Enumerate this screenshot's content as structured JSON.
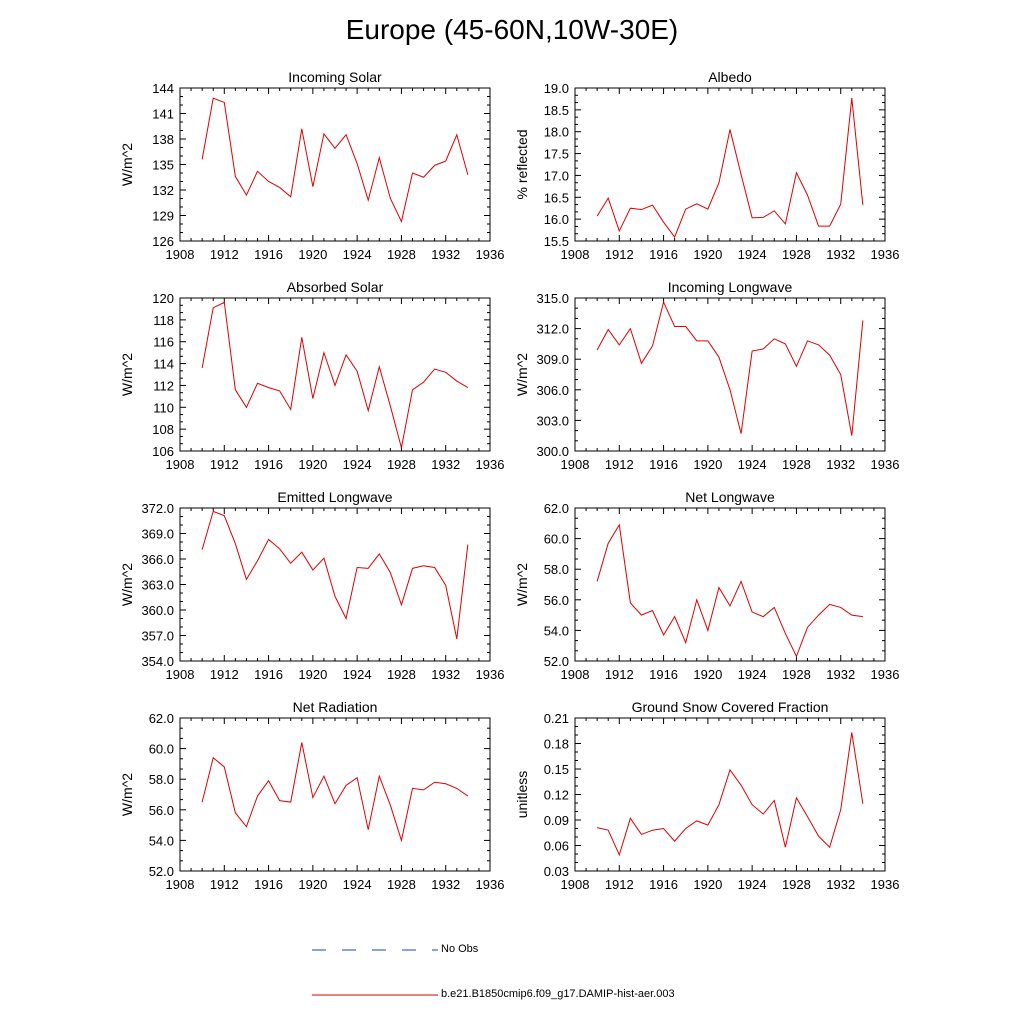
{
  "title": "Europe (45-60N,10W-30E)",
  "legend": {
    "entries": [
      {
        "label": "No Obs",
        "color": "#1f3fbf",
        "style": "dashed"
      },
      {
        "label": "b.e21.B1850cmip6.f09_g17.DAMIP-hist-aer.003",
        "color": "#e00000",
        "style": "solid"
      }
    ]
  },
  "chart_data": [
    {
      "type": "line",
      "title": "Incoming Solar",
      "ylabel": "W/m^2",
      "xlim": [
        1908,
        1936
      ],
      "ylim": [
        126,
        144
      ],
      "x_ticks": [
        "1908",
        "1912",
        "1916",
        "1920",
        "1924",
        "1928",
        "1932",
        "1936"
      ],
      "y_ticks": [
        "126",
        "129",
        "132",
        "135",
        "138",
        "141",
        "144"
      ],
      "y_tick_values": [
        126,
        129,
        132,
        135,
        138,
        141,
        144
      ],
      "series": [
        {
          "color": "#e00000",
          "x": [
            1910,
            1911,
            1912,
            1913,
            1914,
            1915,
            1916,
            1917,
            1918,
            1919,
            1920,
            1921,
            1922,
            1923,
            1924,
            1925,
            1926,
            1927,
            1928,
            1929,
            1930,
            1931,
            1932,
            1933,
            1934
          ],
          "values": [
            135.6,
            142.8,
            142.3,
            133.6,
            131.4,
            134.2,
            133.0,
            132.3,
            131.2,
            139.2,
            132.4,
            138.6,
            136.9,
            138.5,
            135.1,
            130.8,
            135.8,
            131.0,
            128.3,
            134.0,
            133.5,
            134.9,
            135.4,
            138.5,
            133.8
          ]
        }
      ]
    },
    {
      "type": "line",
      "title": "Albedo",
      "ylabel": "% reflected",
      "xlim": [
        1908,
        1936
      ],
      "ylim": [
        15.5,
        19.0
      ],
      "x_ticks": [
        "1908",
        "1912",
        "1916",
        "1920",
        "1924",
        "1928",
        "1932",
        "1936"
      ],
      "y_ticks": [
        "15.5",
        "16.0",
        "16.5",
        "17.0",
        "17.5",
        "18.0",
        "18.5",
        "19.0"
      ],
      "y_tick_values": [
        15.5,
        16.0,
        16.5,
        17.0,
        17.5,
        18.0,
        18.5,
        19.0
      ],
      "series": [
        {
          "color": "#e00000",
          "x": [
            1910,
            1911,
            1912,
            1913,
            1914,
            1915,
            1916,
            1917,
            1918,
            1919,
            1920,
            1921,
            1922,
            1923,
            1924,
            1925,
            1926,
            1927,
            1928,
            1929,
            1930,
            1931,
            1932,
            1933,
            1934
          ],
          "values": [
            16.07,
            16.48,
            15.73,
            16.25,
            16.22,
            16.32,
            15.93,
            15.59,
            16.23,
            16.35,
            16.23,
            16.83,
            18.05,
            17.02,
            16.03,
            16.04,
            16.19,
            15.89,
            17.06,
            16.55,
            15.84,
            15.84,
            16.34,
            18.77,
            16.32
          ]
        }
      ]
    },
    {
      "type": "line",
      "title": "Absorbed Solar",
      "ylabel": "W/m^2",
      "xlim": [
        1908,
        1936
      ],
      "ylim": [
        106,
        120
      ],
      "x_ticks": [
        "1908",
        "1912",
        "1916",
        "1920",
        "1924",
        "1928",
        "1932",
        "1936"
      ],
      "y_ticks": [
        "106",
        "108",
        "110",
        "112",
        "114",
        "116",
        "118",
        "120"
      ],
      "y_tick_values": [
        106,
        108,
        110,
        112,
        114,
        116,
        118,
        120
      ],
      "series": [
        {
          "color": "#e00000",
          "x": [
            1910,
            1911,
            1912,
            1913,
            1914,
            1915,
            1916,
            1917,
            1918,
            1919,
            1920,
            1921,
            1922,
            1923,
            1924,
            1925,
            1926,
            1927,
            1928,
            1929,
            1930,
            1931,
            1932,
            1933,
            1934
          ],
          "values": [
            113.6,
            119.1,
            119.6,
            111.6,
            110.0,
            112.2,
            111.8,
            111.5,
            109.8,
            116.4,
            110.8,
            115.0,
            112.0,
            114.8,
            113.3,
            109.7,
            113.7,
            110.1,
            106.3,
            111.6,
            112.3,
            113.5,
            113.2,
            112.4,
            111.8
          ]
        }
      ]
    },
    {
      "type": "line",
      "title": "Incoming Longwave",
      "ylabel": "W/m^2",
      "xlim": [
        1908,
        1936
      ],
      "ylim": [
        300.0,
        315.0
      ],
      "x_ticks": [
        "1908",
        "1912",
        "1916",
        "1920",
        "1924",
        "1928",
        "1932",
        "1936"
      ],
      "y_ticks": [
        "300.0",
        "303.0",
        "306.0",
        "309.0",
        "312.0",
        "315.0"
      ],
      "y_tick_values": [
        300.0,
        303.0,
        306.0,
        309.0,
        312.0,
        315.0
      ],
      "series": [
        {
          "color": "#e00000",
          "x": [
            1910,
            1911,
            1912,
            1913,
            1914,
            1915,
            1916,
            1917,
            1918,
            1919,
            1920,
            1921,
            1922,
            1923,
            1924,
            1925,
            1926,
            1927,
            1928,
            1929,
            1930,
            1931,
            1932,
            1933,
            1934
          ],
          "values": [
            309.9,
            311.9,
            310.4,
            312.0,
            308.6,
            310.3,
            314.6,
            312.2,
            312.2,
            310.8,
            310.8,
            309.2,
            306.0,
            301.7,
            309.8,
            310.0,
            311.0,
            310.5,
            308.3,
            310.8,
            310.4,
            309.4,
            307.5,
            301.5,
            312.8
          ]
        }
      ]
    },
    {
      "type": "line",
      "title": "Emitted Longwave",
      "ylabel": "W/m^2",
      "xlim": [
        1908,
        1936
      ],
      "ylim": [
        354.0,
        372.0
      ],
      "x_ticks": [
        "1908",
        "1912",
        "1916",
        "1920",
        "1924",
        "1928",
        "1932",
        "1936"
      ],
      "y_ticks": [
        "354.0",
        "357.0",
        "360.0",
        "363.0",
        "366.0",
        "369.0",
        "372.0"
      ],
      "y_tick_values": [
        354.0,
        357.0,
        360.0,
        363.0,
        366.0,
        369.0,
        372.0
      ],
      "series": [
        {
          "color": "#e00000",
          "x": [
            1910,
            1911,
            1912,
            1913,
            1914,
            1915,
            1916,
            1917,
            1918,
            1919,
            1920,
            1921,
            1922,
            1923,
            1924,
            1925,
            1926,
            1927,
            1928,
            1929,
            1930,
            1931,
            1932,
            1933,
            1934
          ],
          "values": [
            367.1,
            371.6,
            371.1,
            367.8,
            363.6,
            365.8,
            368.3,
            367.2,
            365.5,
            366.8,
            364.7,
            366.1,
            361.6,
            359.0,
            365.0,
            364.9,
            366.6,
            364.4,
            360.6,
            364.9,
            365.2,
            365.0,
            362.9,
            356.6,
            367.7
          ]
        }
      ]
    },
    {
      "type": "line",
      "title": "Net Longwave",
      "ylabel": "W/m^2",
      "xlim": [
        1908,
        1936
      ],
      "ylim": [
        52.0,
        62.0
      ],
      "x_ticks": [
        "1908",
        "1912",
        "1916",
        "1920",
        "1924",
        "1928",
        "1932",
        "1936"
      ],
      "y_ticks": [
        "52.0",
        "54.0",
        "56.0",
        "58.0",
        "60.0",
        "62.0"
      ],
      "y_tick_values": [
        52.0,
        54.0,
        56.0,
        58.0,
        60.0,
        62.0
      ],
      "series": [
        {
          "color": "#e00000",
          "x": [
            1910,
            1911,
            1912,
            1913,
            1914,
            1915,
            1916,
            1917,
            1918,
            1919,
            1920,
            1921,
            1922,
            1923,
            1924,
            1925,
            1926,
            1927,
            1928,
            1929,
            1930,
            1931,
            1932,
            1933,
            1934
          ],
          "values": [
            57.2,
            59.7,
            60.9,
            55.8,
            55.0,
            55.3,
            53.7,
            54.9,
            53.2,
            56.0,
            54.0,
            56.8,
            55.6,
            57.2,
            55.2,
            54.9,
            55.5,
            53.8,
            52.3,
            54.2,
            55.0,
            55.7,
            55.5,
            55.0,
            54.9
          ]
        }
      ]
    },
    {
      "type": "line",
      "title": "Net Radiation",
      "ylabel": "W/m^2",
      "xlim": [
        1908,
        1936
      ],
      "ylim": [
        52.0,
        62.0
      ],
      "x_ticks": [
        "1908",
        "1912",
        "1916",
        "1920",
        "1924",
        "1928",
        "1932",
        "1936"
      ],
      "y_ticks": [
        "52.0",
        "54.0",
        "56.0",
        "58.0",
        "60.0",
        "62.0"
      ],
      "y_tick_values": [
        52.0,
        54.0,
        56.0,
        58.0,
        60.0,
        62.0
      ],
      "series": [
        {
          "color": "#e00000",
          "x": [
            1910,
            1911,
            1912,
            1913,
            1914,
            1915,
            1916,
            1917,
            1918,
            1919,
            1920,
            1921,
            1922,
            1923,
            1924,
            1925,
            1926,
            1927,
            1928,
            1929,
            1930,
            1931,
            1932,
            1933,
            1934
          ],
          "values": [
            56.5,
            59.4,
            58.8,
            55.8,
            54.9,
            56.9,
            57.9,
            56.6,
            56.5,
            60.4,
            56.8,
            58.2,
            56.4,
            57.6,
            58.1,
            54.7,
            58.2,
            56.3,
            54.0,
            57.4,
            57.3,
            57.8,
            57.7,
            57.4,
            56.9
          ]
        }
      ]
    },
    {
      "type": "line",
      "title": "Ground Snow Covered Fraction",
      "ylabel": "unitless",
      "xlim": [
        1908,
        1936
      ],
      "ylim": [
        0.03,
        0.21
      ],
      "x_ticks": [
        "1908",
        "1912",
        "1916",
        "1920",
        "1924",
        "1928",
        "1932",
        "1936"
      ],
      "y_ticks": [
        "0.03",
        "0.06",
        "0.09",
        "0.12",
        "0.15",
        "0.18",
        "0.21"
      ],
      "y_tick_values": [
        0.03,
        0.06,
        0.09,
        0.12,
        0.15,
        0.18,
        0.21
      ],
      "series": [
        {
          "color": "#e00000",
          "x": [
            1910,
            1911,
            1912,
            1913,
            1914,
            1915,
            1916,
            1917,
            1918,
            1919,
            1920,
            1921,
            1922,
            1923,
            1924,
            1925,
            1926,
            1927,
            1928,
            1929,
            1930,
            1931,
            1932,
            1933,
            1934
          ],
          "values": [
            0.081,
            0.078,
            0.049,
            0.092,
            0.073,
            0.078,
            0.08,
            0.065,
            0.08,
            0.089,
            0.084,
            0.108,
            0.149,
            0.131,
            0.108,
            0.097,
            0.113,
            0.058,
            0.116,
            0.094,
            0.071,
            0.058,
            0.102,
            0.193,
            0.109
          ]
        }
      ]
    }
  ]
}
